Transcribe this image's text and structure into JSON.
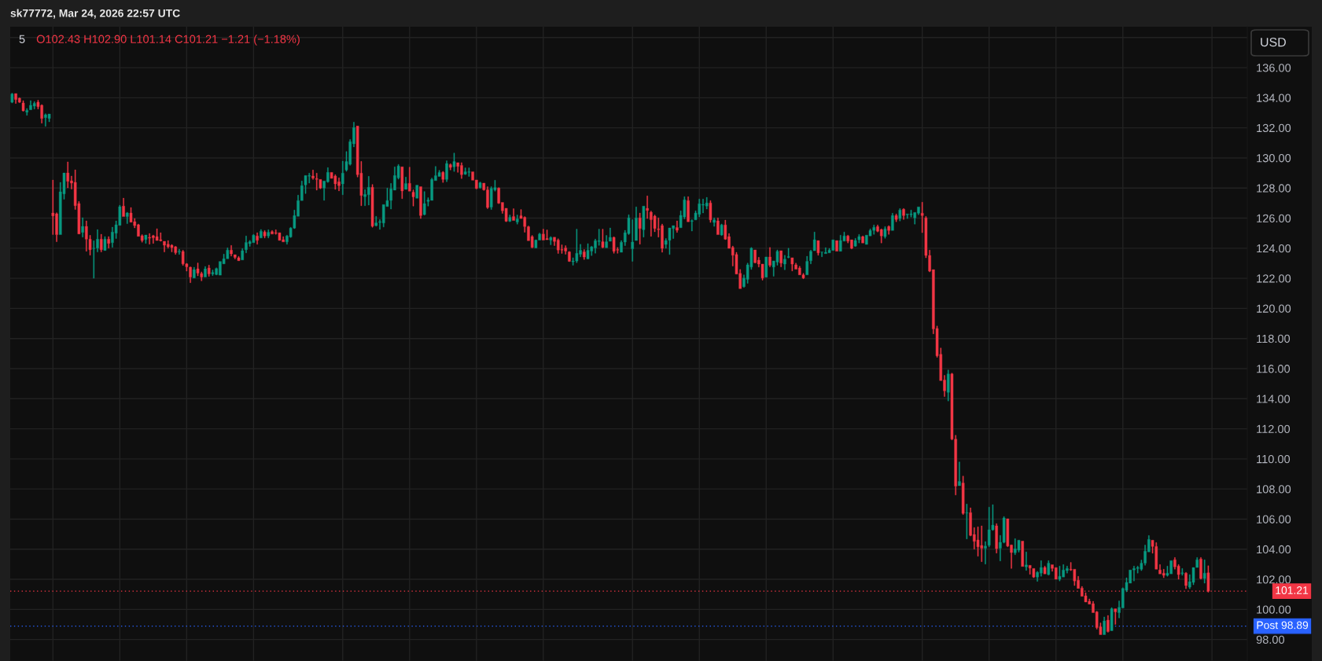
{
  "chart_data": {
    "type": "candlestick",
    "title": "5",
    "subtitle": "O102.43 H102.90 L101.14 C101.21 −1.21 (−1.18%)",
    "ylabel": "USD",
    "annotations": [
      "sk77772, Mar 24, 2026 22:57 UTC"
    ],
    "categories": [
      null,
      null,
      null,
      null,
      null,
      null,
      null,
      null,
      null,
      null,
      null,
      null,
      null,
      null,
      null,
      null,
      null,
      null,
      null,
      null,
      null,
      null,
      null,
      null,
      null,
      null,
      null,
      null,
      null,
      null,
      null,
      null,
      null,
      null,
      null,
      null,
      null,
      null,
      null,
      null,
      null,
      null,
      null,
      null,
      null,
      null,
      null,
      null,
      null,
      null,
      null,
      null,
      null,
      null,
      null,
      null,
      null,
      null,
      null,
      null,
      null,
      null,
      null,
      null,
      null,
      null,
      null,
      null,
      null,
      null,
      null,
      null,
      null,
      null,
      null,
      null,
      null,
      null,
      null,
      null,
      null,
      null,
      null,
      null,
      null,
      null,
      null,
      null,
      null,
      null,
      null,
      null,
      null,
      null,
      null,
      null,
      null,
      null,
      null,
      null,
      null,
      null,
      null,
      null,
      null,
      null,
      null,
      null,
      null,
      null,
      null,
      null,
      null,
      null,
      null,
      null,
      null,
      null,
      null,
      null,
      null,
      null,
      null,
      null,
      null,
      null,
      null,
      null,
      null,
      null,
      null,
      null,
      null,
      null,
      null,
      null,
      null,
      null,
      null,
      null,
      null,
      null,
      null,
      null,
      null,
      null,
      null,
      null,
      null,
      null,
      null,
      null,
      null,
      null,
      null,
      null,
      null,
      null,
      null,
      null,
      null,
      null,
      null,
      null,
      null,
      null,
      null,
      null,
      null,
      null,
      null,
      null,
      null,
      null,
      null,
      null,
      null,
      null,
      null,
      null,
      null,
      null,
      null,
      null,
      null,
      null,
      null,
      null,
      null,
      null,
      null,
      null,
      null,
      null,
      null,
      null,
      null,
      null,
      null,
      null,
      null,
      null,
      null,
      null,
      null,
      null,
      null,
      null,
      null,
      null,
      null,
      null,
      null,
      null,
      null,
      null,
      null,
      null,
      null,
      null,
      null,
      null,
      null,
      null,
      null,
      null,
      null,
      null,
      null,
      null,
      null,
      null,
      null,
      null,
      null,
      null,
      null,
      null,
      null,
      null,
      null,
      null,
      null,
      null,
      null,
      null,
      null,
      null,
      null,
      null,
      null,
      null,
      null,
      null,
      null,
      null,
      null,
      null,
      null,
      null,
      null,
      null,
      null,
      null,
      null,
      null,
      null,
      null,
      null,
      null,
      null,
      null,
      null,
      null,
      null,
      null,
      null,
      null,
      null,
      null,
      null,
      null,
      null,
      null,
      null,
      null,
      null,
      null,
      null,
      null,
      null,
      null,
      null,
      null,
      null,
      null,
      null,
      null,
      null,
      null,
      null,
      null,
      null,
      null,
      null,
      null,
      null,
      null,
      null,
      null,
      null,
      null,
      null,
      null,
      null,
      null,
      null,
      null,
      null,
      null,
      null,
      null,
      null,
      null,
      null,
      null,
      null,
      null,
      null,
      null,
      null,
      null,
      null
    ],
    "ohlc": [
      [
        133.7,
        134.3,
        133.65,
        134.25
      ],
      [
        134.28,
        134.28,
        133.62,
        133.88
      ],
      [
        133.97,
        134.0,
        133.67,
        133.7
      ],
      [
        133.65,
        133.81,
        133.1,
        133.13
      ],
      [
        133.04,
        133.29,
        132.83,
        133.16
      ],
      [
        133.2,
        133.81,
        133.2,
        133.5
      ],
      [
        133.44,
        133.74,
        133.25,
        133.63
      ],
      [
        133.7,
        133.84,
        133.25,
        133.41
      ],
      [
        133.5,
        133.55,
        132.31,
        132.62
      ],
      [
        132.68,
        132.94,
        132.1,
        132.87
      ],
      [
        132.62,
        132.92,
        132.4,
        132.92
      ],
      [
        126.34,
        128.53,
        124.91,
        126.15
      ],
      [
        126.29,
        126.36,
        124.43,
        124.9
      ],
      [
        124.9,
        128.38,
        124.9,
        127.75
      ],
      [
        127.61,
        129.0,
        127.25,
        129.0
      ],
      [
        129.0,
        129.74,
        128.01,
        128.45
      ],
      [
        128.48,
        128.8,
        127.93,
        128.33
      ],
      [
        128.38,
        129.21,
        126.57,
        126.83
      ],
      [
        126.97,
        127.11,
        124.95,
        124.95
      ],
      [
        125.05,
        126.03,
        124.74,
        125.45
      ],
      [
        125.45,
        125.82,
        123.8,
        124.6
      ],
      [
        124.6,
        124.86,
        123.54,
        123.9
      ],
      [
        123.98,
        124.5,
        122.0,
        124.0
      ],
      [
        124.0,
        125.24,
        123.75,
        124.6
      ],
      [
        124.6,
        124.93,
        123.75,
        123.9
      ],
      [
        123.85,
        124.78,
        123.85,
        124.6
      ],
      [
        124.6,
        124.78,
        124.0,
        124.32
      ],
      [
        124.37,
        125.4,
        124.06,
        125.07
      ],
      [
        125.0,
        125.82,
        124.64,
        125.56
      ],
      [
        125.52,
        126.86,
        125.52,
        126.76
      ],
      [
        126.8,
        127.33,
        126.1,
        126.1
      ],
      [
        126.1,
        126.39,
        125.63,
        126.34
      ],
      [
        126.34,
        126.71,
        125.73,
        125.73
      ],
      [
        125.77,
        125.98,
        125.35,
        125.5
      ],
      [
        125.56,
        125.61,
        124.79,
        124.79
      ],
      [
        124.83,
        124.9,
        124.4,
        124.51
      ],
      [
        124.58,
        124.88,
        124.32,
        124.88
      ],
      [
        124.72,
        124.98,
        124.27,
        124.67
      ],
      [
        124.83,
        124.88,
        124.32,
        124.69
      ],
      [
        124.77,
        125.3,
        124.51,
        124.51
      ],
      [
        124.57,
        125.03,
        124.46,
        124.5
      ],
      [
        124.46,
        124.46,
        123.75,
        124.2
      ],
      [
        124.27,
        124.51,
        124.0,
        124.1
      ],
      [
        124.2,
        124.25,
        123.75,
        124.04
      ],
      [
        124.1,
        124.13,
        123.59,
        123.7
      ],
      [
        123.75,
        123.94,
        123.59,
        123.8
      ],
      [
        123.78,
        123.87,
        122.86,
        122.96
      ],
      [
        122.96,
        123.0,
        122.48,
        122.76
      ],
      [
        122.74,
        122.77,
        121.71,
        122.08
      ],
      [
        122.02,
        122.74,
        122.02,
        122.58
      ],
      [
        122.63,
        123.02,
        122.16,
        122.34
      ],
      [
        122.32,
        122.43,
        121.83,
        122.09
      ],
      [
        122.08,
        122.79,
        122.08,
        122.63
      ],
      [
        122.69,
        122.88,
        122.13,
        122.29
      ],
      [
        122.3,
        122.56,
        122.18,
        122.39
      ],
      [
        122.25,
        122.7,
        122.22,
        122.65
      ],
      [
        122.21,
        123.12,
        122.21,
        123.12
      ],
      [
        122.96,
        123.61,
        122.96,
        123.3
      ],
      [
        123.3,
        124.03,
        123.3,
        123.88
      ],
      [
        123.88,
        124.19,
        123.48,
        123.63
      ],
      [
        123.57,
        123.57,
        123.29,
        123.39
      ],
      [
        123.37,
        123.46,
        123.17,
        123.17
      ],
      [
        123.22,
        123.98,
        123.22,
        123.83
      ],
      [
        123.9,
        124.82,
        123.69,
        124.38
      ],
      [
        124.3,
        124.52,
        124.12,
        124.43
      ],
      [
        124.37,
        124.92,
        124.37,
        124.87
      ],
      [
        124.82,
        125.03,
        124.26,
        124.52
      ],
      [
        124.68,
        125.25,
        124.68,
        125.13
      ],
      [
        125.08,
        125.18,
        124.68,
        124.82
      ],
      [
        124.82,
        125.23,
        124.68,
        125.06
      ],
      [
        125.1,
        125.18,
        124.94,
        124.94
      ],
      [
        125.04,
        125.23,
        124.92,
        124.99
      ],
      [
        125.03,
        125.03,
        124.52,
        124.52
      ],
      [
        124.57,
        124.77,
        124.42,
        124.42
      ],
      [
        124.42,
        124.87,
        124.26,
        124.82
      ],
      [
        124.75,
        125.39,
        124.71,
        125.34
      ],
      [
        125.34,
        126.54,
        125.3,
        126.17
      ],
      [
        126.12,
        127.53,
        126.12,
        127.17
      ],
      [
        127.17,
        128.47,
        127.17,
        128.16
      ],
      [
        128.21,
        128.83,
        127.63,
        128.83
      ],
      [
        128.78,
        128.99,
        128.33,
        128.83
      ],
      [
        128.8,
        129.2,
        128.57,
        128.66
      ],
      [
        128.63,
        128.99,
        127.86,
        128.57
      ],
      [
        128.57,
        128.57,
        127.95,
        128.0
      ],
      [
        128.0,
        128.47,
        127.18,
        128.47
      ],
      [
        128.42,
        129.36,
        128.37,
        129.04
      ],
      [
        129.04,
        129.04,
        128.64,
        128.64
      ],
      [
        128.8,
        128.89,
        127.91,
        128.28
      ],
      [
        128.42,
        128.68,
        127.81,
        128.16
      ],
      [
        128.28,
        129.79,
        127.55,
        128.99
      ],
      [
        129.2,
        130.43,
        129.11,
        129.76
      ],
      [
        129.58,
        131.23,
        129.51,
        131.08
      ],
      [
        130.94,
        132.38,
        130.73,
        132.02
      ],
      [
        132.12,
        132.12,
        128.73,
        128.89
      ],
      [
        128.99,
        129.77,
        126.82,
        127.5
      ],
      [
        127.43,
        127.9,
        126.82,
        127.58
      ],
      [
        127.55,
        128.78,
        126.87,
        128.05
      ],
      [
        128.05,
        128.24,
        125.39,
        125.46
      ],
      [
        125.5,
        126.12,
        125.46,
        125.69
      ],
      [
        125.72,
        125.91,
        125.25,
        125.77
      ],
      [
        125.67,
        126.9,
        125.41,
        126.9
      ],
      [
        126.77,
        128.0,
        126.77,
        127.17
      ],
      [
        127.18,
        128.31,
        126.6,
        127.95
      ],
      [
        127.86,
        129.41,
        127.86,
        128.83
      ],
      [
        128.68,
        129.57,
        128.59,
        129.46
      ],
      [
        129.41,
        129.41,
        127.29,
        127.81
      ],
      [
        127.91,
        128.73,
        127.91,
        128.3
      ],
      [
        128.31,
        129.39,
        127.79,
        127.79
      ],
      [
        127.72,
        127.88,
        126.8,
        127.41
      ],
      [
        127.32,
        128.19,
        127.32,
        128.19
      ],
      [
        128.09,
        128.09,
        125.97,
        126.17
      ],
      [
        126.24,
        127.77,
        126.2,
        126.97
      ],
      [
        127.11,
        127.36,
        126.8,
        127.2
      ],
      [
        127.18,
        128.66,
        127.18,
        128.57
      ],
      [
        128.49,
        129.44,
        128.49,
        128.82
      ],
      [
        128.77,
        129.18,
        128.77,
        129.03
      ],
      [
        129.04,
        129.11,
        128.37,
        128.57
      ],
      [
        128.57,
        129.81,
        128.42,
        129.63
      ],
      [
        129.55,
        129.62,
        129.2,
        129.37
      ],
      [
        129.41,
        130.33,
        129.1,
        129.76
      ],
      [
        129.69,
        129.69,
        129.04,
        129.44
      ],
      [
        129.5,
        129.69,
        128.63,
        128.89
      ],
      [
        128.92,
        129.34,
        128.89,
        129.08
      ],
      [
        129.04,
        129.34,
        128.77,
        129.08
      ],
      [
        129.08,
        129.08,
        128.52,
        128.52
      ],
      [
        128.54,
        128.54,
        127.93,
        127.97
      ],
      [
        128.02,
        128.4,
        127.98,
        128.35
      ],
      [
        128.33,
        128.33,
        127.84,
        127.88
      ],
      [
        127.88,
        128.09,
        126.63,
        126.71
      ],
      [
        126.73,
        128.09,
        126.57,
        127.98
      ],
      [
        127.88,
        128.52,
        127.79,
        128.03
      ],
      [
        128.0,
        128.03,
        126.96,
        126.99
      ],
      [
        127.04,
        127.04,
        126.31,
        126.49
      ],
      [
        126.66,
        126.66,
        125.76,
        125.79
      ],
      [
        125.79,
        126.21,
        125.76,
        126.05
      ],
      [
        126.1,
        126.63,
        125.84,
        125.84
      ],
      [
        125.74,
        126.21,
        125.6,
        125.95
      ],
      [
        126.16,
        126.57,
        125.97,
        125.97
      ],
      [
        126.05,
        126.1,
        125.06,
        125.44
      ],
      [
        125.43,
        125.48,
        124.5,
        124.5
      ],
      [
        124.77,
        124.85,
        124.02,
        124.05
      ],
      [
        124.02,
        124.57,
        124.02,
        124.54
      ],
      [
        124.54,
        125.01,
        124.54,
        124.94
      ],
      [
        124.94,
        125.27,
        124.54,
        124.54
      ],
      [
        124.64,
        125.22,
        124.56,
        124.56
      ],
      [
        124.54,
        124.78,
        124.23,
        124.71
      ],
      [
        124.73,
        124.73,
        124.17,
        124.45
      ],
      [
        124.54,
        124.63,
        123.65,
        123.88
      ],
      [
        123.91,
        124.23,
        123.65,
        123.88
      ],
      [
        124.02,
        124.17,
        123.6,
        123.81
      ],
      [
        123.76,
        123.79,
        123.1,
        123.13
      ],
      [
        123.1,
        123.37,
        122.87,
        123.15
      ],
      [
        123.15,
        125.27,
        123.04,
        123.66
      ],
      [
        123.6,
        124.26,
        123.43,
        123.86
      ],
      [
        123.76,
        123.91,
        123.25,
        123.41
      ],
      [
        123.29,
        124.31,
        123.29,
        123.86
      ],
      [
        123.81,
        124.14,
        123.51,
        124.09
      ],
      [
        124.02,
        124.61,
        123.67,
        124.5
      ],
      [
        124.45,
        125.27,
        124.19,
        124.5
      ],
      [
        124.43,
        125.27,
        124.02,
        124.05
      ],
      [
        124.03,
        124.85,
        124.03,
        124.43
      ],
      [
        124.46,
        125.35,
        124.46,
        124.72
      ],
      [
        124.72,
        124.76,
        123.66,
        123.8
      ],
      [
        123.91,
        124.05,
        123.66,
        123.87
      ],
      [
        123.73,
        124.51,
        123.73,
        124.39
      ],
      [
        124.41,
        125.19,
        124.17,
        125.03
      ],
      [
        124.97,
        126.23,
        124.91,
        126.02
      ],
      [
        123.96,
        125.9,
        123.13,
        124.41
      ],
      [
        124.51,
        126.75,
        124.51,
        126.02
      ],
      [
        126.02,
        126.34,
        124.27,
        125.31
      ],
      [
        125.23,
        126.8,
        124.74,
        126.8
      ],
      [
        126.65,
        127.48,
        125.97,
        126.51
      ],
      [
        126.39,
        126.47,
        124.79,
        125.9
      ],
      [
        126.13,
        126.21,
        125.09,
        125.31
      ],
      [
        125.29,
        126.02,
        124.74,
        125.23
      ],
      [
        125.5,
        125.61,
        123.73,
        123.99
      ],
      [
        124.25,
        124.65,
        123.99,
        124.51
      ],
      [
        124.53,
        125.35,
        123.58,
        125.35
      ],
      [
        125.31,
        125.5,
        124.64,
        125.5
      ],
      [
        125.38,
        125.82,
        125.05,
        125.19
      ],
      [
        125.36,
        126.49,
        125.36,
        126.18
      ],
      [
        126.08,
        127.43,
        125.95,
        127.22
      ],
      [
        127.17,
        127.43,
        125.76,
        125.76
      ],
      [
        125.78,
        125.9,
        125.14,
        125.83
      ],
      [
        125.88,
        126.49,
        125.88,
        126.34
      ],
      [
        126.25,
        127.27,
        126.08,
        126.96
      ],
      [
        126.86,
        127.27,
        126.34,
        126.91
      ],
      [
        126.8,
        127.38,
        126.6,
        127.01
      ],
      [
        127.01,
        127.17,
        125.71,
        125.88
      ],
      [
        125.71,
        126.02,
        125.45,
        125.88
      ],
      [
        125.82,
        126.02,
        124.9,
        124.9
      ],
      [
        124.88,
        125.61,
        124.84,
        125.55
      ],
      [
        125.55,
        125.87,
        124.57,
        124.6
      ],
      [
        124.77,
        124.98,
        123.99,
        123.99
      ],
      [
        124.05,
        124.15,
        122.82,
        123.53
      ],
      [
        123.58,
        123.73,
        122.28,
        122.28
      ],
      [
        122.33,
        122.59,
        121.31,
        121.31
      ],
      [
        121.45,
        122.23,
        121.39,
        122.02
      ],
      [
        121.93,
        123.01,
        121.67,
        122.9
      ],
      [
        122.75,
        124.05,
        122.59,
        124.0
      ],
      [
        123.89,
        123.89,
        123.01,
        123.04
      ],
      [
        123.21,
        123.4,
        122.75,
        122.95
      ],
      [
        122.95,
        122.95,
        121.88,
        122.02
      ],
      [
        122.07,
        123.42,
        122.07,
        123.42
      ],
      [
        123.42,
        124.05,
        122.76,
        122.87
      ],
      [
        122.75,
        123.16,
        122.14,
        123.16
      ],
      [
        123.08,
        123.89,
        122.87,
        123.79
      ],
      [
        123.84,
        123.84,
        122.76,
        123.01
      ],
      [
        122.95,
        123.53,
        122.57,
        123.27
      ],
      [
        123.39,
        124.0,
        123.35,
        123.44
      ],
      [
        123.37,
        123.37,
        122.49,
        122.95
      ],
      [
        122.9,
        123.01,
        122.61,
        122.61
      ],
      [
        122.69,
        122.8,
        122.23,
        122.23
      ],
      [
        122.23,
        122.33,
        121.97,
        122.02
      ],
      [
        122.23,
        123.47,
        122.23,
        123.13
      ],
      [
        123.17,
        123.88,
        122.96,
        123.8
      ],
      [
        123.83,
        125.08,
        123.83,
        124.56
      ],
      [
        124.51,
        124.51,
        123.53,
        123.69
      ],
      [
        123.74,
        123.76,
        123.43,
        123.76
      ],
      [
        123.64,
        124.04,
        123.64,
        123.73
      ],
      [
        123.69,
        123.99,
        123.69,
        123.88
      ],
      [
        123.85,
        124.56,
        123.85,
        124.56
      ],
      [
        124.51,
        124.51,
        123.8,
        123.8
      ],
      [
        123.8,
        124.87,
        123.8,
        124.51
      ],
      [
        124.47,
        125.08,
        124.47,
        124.82
      ],
      [
        124.82,
        124.87,
        124.35,
        124.47
      ],
      [
        124.56,
        124.56,
        123.95,
        123.99
      ],
      [
        124.14,
        124.66,
        124.11,
        124.51
      ],
      [
        124.56,
        124.92,
        124.35,
        124.77
      ],
      [
        124.77,
        124.82,
        124.35,
        124.35
      ],
      [
        124.25,
        124.87,
        124.25,
        124.87
      ],
      [
        124.82,
        125.29,
        124.82,
        125.18
      ],
      [
        125.18,
        125.55,
        124.92,
        125.39
      ],
      [
        125.44,
        125.55,
        125.08,
        125.13
      ],
      [
        125.24,
        125.29,
        124.35,
        124.82
      ],
      [
        124.77,
        125.44,
        124.66,
        125.29
      ],
      [
        125.44,
        125.5,
        124.92,
        125.18
      ],
      [
        125.18,
        126.33,
        125.18,
        126.17
      ],
      [
        126.17,
        126.28,
        125.76,
        125.91
      ],
      [
        125.97,
        126.64,
        125.81,
        126.54
      ],
      [
        126.59,
        126.64,
        125.91,
        126.17
      ],
      [
        126.23,
        126.28,
        125.97,
        126.28
      ],
      [
        126.23,
        126.54,
        126.07,
        126.28
      ],
      [
        126.02,
        126.38,
        125.6,
        126.38
      ],
      [
        126.33,
        126.75,
        126.23,
        126.75
      ],
      [
        126.33,
        127.06,
        125.03,
        126.17
      ],
      [
        126.02,
        126.12,
        123.36,
        123.52
      ],
      [
        123.52,
        123.88,
        122.42,
        122.48
      ],
      [
        122.58,
        122.58,
        118.31,
        118.64
      ],
      [
        118.67,
        118.83,
        116.75,
        116.85
      ],
      [
        116.95,
        117.37,
        115.2,
        115.2
      ],
      [
        115.24,
        115.55,
        114.14,
        114.52
      ],
      [
        114.42,
        115.91,
        113.85,
        115.65
      ],
      [
        115.65,
        115.7,
        111.26,
        111.31
      ],
      [
        111.31,
        111.57,
        107.6,
        108.19
      ],
      [
        108.22,
        109.8,
        108.22,
        108.5
      ],
      [
        108.4,
        108.86,
        106.3,
        106.38
      ],
      [
        106.4,
        107.0,
        104.68,
        106.43
      ],
      [
        106.43,
        106.75,
        104.87,
        104.92
      ],
      [
        104.98,
        105.44,
        104.0,
        104.52
      ],
      [
        104.61,
        105.49,
        103.53,
        104.16
      ],
      [
        104.25,
        105.55,
        103.17,
        104.06
      ],
      [
        104.06,
        104.51,
        103.01,
        104.21
      ],
      [
        104.26,
        106.8,
        104.16,
        105.29
      ],
      [
        105.29,
        106.96,
        105.24,
        105.6
      ],
      [
        105.55,
        105.7,
        103.74,
        104.04
      ],
      [
        104.06,
        104.92,
        103.22,
        104.46
      ],
      [
        104.46,
        106.17,
        104.4,
        106.07
      ],
      [
        106.02,
        106.02,
        104.16,
        104.21
      ],
      [
        104.28,
        104.3,
        102.72,
        103.78
      ],
      [
        103.76,
        104.7,
        103.63,
        104.02
      ],
      [
        103.94,
        104.6,
        103.8,
        104.6
      ],
      [
        104.54,
        104.54,
        102.85,
        102.85
      ],
      [
        102.83,
        103.82,
        102.59,
        102.95
      ],
      [
        102.93,
        102.93,
        102.33,
        102.74
      ],
      [
        102.72,
        102.72,
        102.1,
        102.15
      ],
      [
        102.15,
        102.53,
        101.86,
        102.46
      ],
      [
        102.41,
        103.24,
        102.2,
        102.78
      ],
      [
        102.78,
        102.88,
        102.36,
        102.36
      ],
      [
        102.31,
        103.24,
        102.27,
        103.07
      ],
      [
        102.97,
        102.97,
        102.53,
        102.72
      ],
      [
        102.78,
        102.78,
        102.0,
        102.0
      ],
      [
        102.0,
        102.88,
        101.89,
        102.2
      ],
      [
        102.15,
        102.98,
        102.15,
        102.62
      ],
      [
        102.57,
        102.88,
        102.41,
        102.72
      ],
      [
        102.67,
        103.12,
        102.57,
        102.62
      ],
      [
        102.67,
        102.67,
        101.58,
        101.89
      ],
      [
        101.94,
        102.2,
        101.39,
        101.39
      ],
      [
        101.42,
        101.53,
        100.87,
        100.87
      ],
      [
        100.9,
        101.11,
        100.49,
        100.49
      ],
      [
        100.54,
        100.7,
        100.35,
        100.35
      ],
      [
        100.38,
        100.54,
        99.78,
        99.78
      ],
      [
        99.83,
        99.88,
        98.69,
        98.79
      ],
      [
        98.84,
        99.1,
        98.32,
        98.32
      ],
      [
        98.32,
        99.5,
        98.32,
        99.24
      ],
      [
        99.29,
        99.6,
        98.48,
        98.53
      ],
      [
        98.58,
        100.12,
        98.58,
        100.04
      ],
      [
        100.04,
        100.04,
        99.0,
        99.83
      ],
      [
        99.78,
        100.56,
        99.43,
        100.14
      ],
      [
        100.09,
        101.44,
        100.09,
        101.39
      ],
      [
        101.27,
        102.1,
        101.16,
        101.79
      ],
      [
        101.74,
        102.62,
        101.74,
        102.62
      ],
      [
        102.62,
        102.88,
        101.89,
        102.72
      ],
      [
        102.72,
        102.88,
        102.41,
        102.78
      ],
      [
        102.67,
        103.28,
        102.57,
        103.07
      ],
      [
        103.07,
        104.28,
        102.93,
        103.87
      ],
      [
        103.82,
        104.91,
        103.82,
        104.65
      ],
      [
        104.6,
        104.6,
        103.73,
        104.18
      ],
      [
        104.18,
        104.44,
        102.67,
        102.67
      ],
      [
        102.62,
        102.98,
        102.36,
        102.36
      ],
      [
        102.41,
        102.67,
        102.1,
        102.26
      ],
      [
        102.26,
        102.88,
        102.2,
        102.41
      ],
      [
        102.36,
        103.24,
        102.36,
        103.24
      ],
      [
        103.3,
        103.45,
        102.67,
        102.83
      ],
      [
        102.88,
        102.98,
        102.0,
        102.31
      ],
      [
        102.38,
        102.72,
        102.26,
        102.43
      ],
      [
        102.41,
        102.46,
        101.37,
        101.58
      ],
      [
        101.48,
        102.31,
        101.37,
        101.84
      ],
      [
        101.79,
        102.78,
        101.63,
        102.78
      ],
      [
        102.78,
        103.45,
        102.78,
        103.3
      ],
      [
        103.35,
        103.45,
        102.0,
        102.05
      ],
      [
        102.05,
        103.3,
        101.74,
        102.41
      ],
      [
        102.43,
        102.9,
        101.14,
        101.21
      ],
      null,
      null,
      null,
      null,
      null,
      null,
      null,
      null,
      null,
      null
    ],
    "colors": [
      "#089981",
      "#f23645",
      "#f23645",
      "#f23645",
      "#089981",
      "#089981",
      "#089981",
      "#f23645",
      "#f23645",
      "#089981",
      "#089981",
      "#f23645",
      "#f23645",
      "#089981",
      "#089981",
      "#f23645",
      "#f23645",
      "#f23645",
      "#f23645",
      "#089981",
      "#f23645",
      "#f23645",
      "#089981",
      "#089981",
      "#f23645",
      "#089981",
      "#f23645",
      "#089981",
      "#089981",
      "#089981",
      "#f23645",
      "#089981",
      "#f23645",
      "#f23645",
      "#f23645",
      "#f23645",
      "#089981",
      "#f23645",
      "#f23645",
      "#f23645",
      "#f23645",
      "#f23645",
      "#f23645",
      "#f23645",
      "#f23645",
      "#089981",
      "#f23645",
      "#f23645",
      "#f23645",
      "#089981",
      "#f23645",
      "#f23645",
      "#089981",
      "#f23645",
      "#089981",
      "#089981",
      "#089981",
      "#089981",
      "#089981",
      "#f23645",
      "#f23645",
      "#f23645",
      "#089981",
      "#089981",
      "#089981",
      "#089981",
      "#f23645",
      "#089981",
      "#f23645",
      "#089981",
      "#f23645",
      "#f23645",
      "#f23645",
      "#f23645",
      "#089981",
      "#089981",
      "#089981",
      "#089981",
      "#089981",
      "#089981",
      "#089981",
      "#f23645",
      "#f23645",
      "#f23645",
      "#089981",
      "#089981",
      "#f23645",
      "#f23645",
      "#f23645",
      "#089981",
      "#089981",
      "#089981",
      "#089981",
      "#f23645",
      "#f23645",
      "#089981",
      "#089981",
      "#f23645",
      "#089981",
      "#089981",
      "#089981",
      "#089981",
      "#089981",
      "#089981",
      "#089981",
      "#f23645",
      "#089981",
      "#f23645",
      "#f23645",
      "#089981",
      "#f23645",
      "#089981",
      "#089981",
      "#089981",
      "#089981",
      "#089981",
      "#f23645",
      "#089981",
      "#f23645",
      "#089981",
      "#f23645",
      "#f23645",
      "#089981",
      "#089981",
      "#f23645",
      "#f23645",
      "#089981",
      "#f23645",
      "#f23645",
      "#089981",
      "#089981",
      "#f23645",
      "#f23645",
      "#f23645",
      "#089981",
      "#f23645",
      "#089981",
      "#f23645",
      "#f23645",
      "#f23645",
      "#f23645",
      "#089981",
      "#089981",
      "#f23645",
      "#f23645",
      "#089981",
      "#f23645",
      "#f23645",
      "#f23645",
      "#f23645",
      "#f23645",
      "#089981",
      "#089981",
      "#089981",
      "#f23645",
      "#089981",
      "#089981",
      "#089981",
      "#089981",
      "#f23645",
      "#089981",
      "#089981",
      "#f23645",
      "#f23645",
      "#089981",
      "#089981",
      "#089981",
      "#089981",
      "#089981",
      "#f23645",
      "#089981",
      "#f23645",
      "#f23645",
      "#f23645",
      "#f23645",
      "#f23645",
      "#089981",
      "#089981",
      "#089981",
      "#f23645",
      "#089981",
      "#089981",
      "#f23645",
      "#089981",
      "#089981",
      "#089981",
      "#089981",
      "#089981",
      "#f23645",
      "#089981",
      "#f23645",
      "#089981",
      "#f23645",
      "#f23645",
      "#f23645",
      "#f23645",
      "#f23645",
      "#089981",
      "#089981",
      "#089981",
      "#f23645",
      "#f23645",
      "#f23645",
      "#089981",
      "#f23645",
      "#089981",
      "#089981",
      "#f23645",
      "#089981",
      "#089981",
      "#f23645",
      "#f23645",
      "#f23645",
      "#f23645",
      "#089981",
      "#089981",
      "#089981",
      "#f23645",
      "#089981",
      "#089981",
      "#089981",
      "#089981",
      "#f23645",
      "#089981",
      "#089981",
      "#f23645",
      "#f23645",
      "#089981",
      "#089981",
      "#f23645",
      "#089981",
      "#089981",
      "#089981",
      "#f23645",
      "#f23645",
      "#089981",
      "#f23645",
      "#089981",
      "#f23645",
      "#089981",
      "#f23645",
      "#089981",
      "#089981",
      "#089981",
      "#089981",
      "#f23645",
      "#f23645",
      "#f23645",
      "#f23645",
      "#f23645",
      "#f23645",
      "#f23645",
      "#089981",
      "#f23645",
      "#f23645",
      "#089981",
      "#f23645",
      "#089981",
      "#f23645",
      "#f23645",
      "#f23645",
      "#f23645",
      "#089981",
      "#089981",
      "#089981",
      "#f23645",
      "#089981",
      "#089981",
      "#f23645",
      "#f23645",
      "#089981",
      "#089981",
      "#f23645",
      "#089981",
      "#f23645",
      "#f23645",
      "#089981",
      "#089981",
      "#f23645",
      "#089981",
      "#f23645",
      "#f23645",
      "#089981",
      "#089981",
      "#089981",
      "#f23645",
      "#f23645",
      "#f23645",
      "#f23645",
      "#f23645",
      "#f23645",
      "#f23645",
      "#f23645",
      "#f23645",
      "#089981",
      "#f23645",
      "#089981",
      "#f23645",
      "#089981",
      "#089981",
      "#089981",
      "#089981",
      "#089981",
      "#089981",
      "#089981",
      "#089981",
      "#089981",
      "#f23645",
      "#f23645",
      "#f23645",
      "#f23645",
      "#089981",
      "#089981",
      "#f23645",
      "#f23645",
      "#089981",
      "#f23645",
      "#089981",
      "#089981",
      "#089981",
      "#f23645",
      "#089981",
      "#f23645",
      null,
      null,
      null,
      null,
      null,
      null,
      null,
      null,
      null,
      null
    ],
    "ylim": [
      96.57,
      138.72
    ],
    "yticks": [
      {
        "value": 98,
        "label": "98.00"
      },
      {
        "value": 100,
        "label": "100.00"
      },
      {
        "value": 102,
        "label": "102.00"
      },
      {
        "value": 104,
        "label": "104.00"
      },
      {
        "value": 106,
        "label": "106.00"
      },
      {
        "value": 108,
        "label": "108.00"
      },
      {
        "value": 110,
        "label": "110.00"
      },
      {
        "value": 112,
        "label": "112.00"
      },
      {
        "value": 114,
        "label": "114.00"
      },
      {
        "value": 116,
        "label": "116.00"
      },
      {
        "value": 118,
        "label": "118.00"
      },
      {
        "value": 120,
        "label": "120.00"
      },
      {
        "value": 122,
        "label": "122.00"
      },
      {
        "value": 124,
        "label": "124.00"
      },
      {
        "value": 126,
        "label": "126.00"
      },
      {
        "value": 128,
        "label": "128.00"
      },
      {
        "value": 130,
        "label": "130.00"
      },
      {
        "value": 132,
        "label": "132.00"
      },
      {
        "value": 134,
        "label": "134.00"
      },
      {
        "value": 136,
        "label": "136.00"
      },
      {
        "value": 138,
        "label": null
      }
    ],
    "ref_lines": [
      {
        "axis": "y",
        "value": 101.21,
        "label": "101.21",
        "color": "#f23645",
        "line_style": "dotted"
      },
      {
        "axis": "y",
        "value": 98.89,
        "label": "Post 98.89",
        "color": "#2962ff",
        "line_style": "dotted"
      }
    ],
    "grid": true,
    "tick_labels": "y"
  }
}
